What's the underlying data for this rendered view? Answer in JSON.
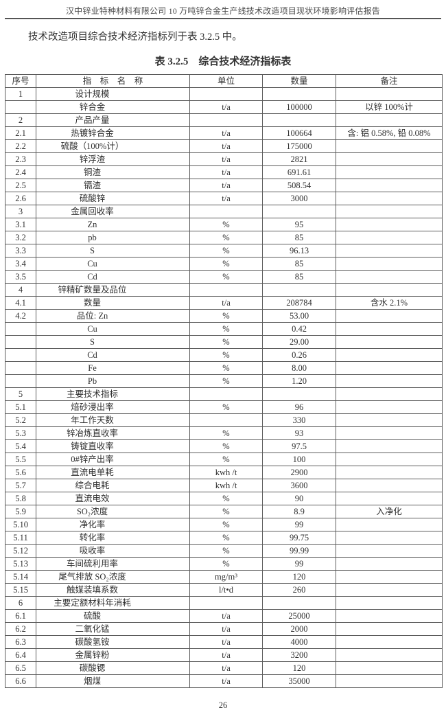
{
  "page": {
    "header": "汉中锌业特种材料有限公司 10 万吨锌合金生产线技术改造项目现状环境影响评估报告",
    "intro": "技术改造项目综合技术经济指标列于表 3.2.5 中。",
    "table_title": "表 3.2.5    综合技术经济指标表",
    "page_number": "26"
  },
  "table": {
    "columns": [
      "序号",
      "指    标    名    称",
      "单位",
      "数量",
      "备注"
    ],
    "rows": [
      [
        "1",
        "设计规模",
        "",
        "",
        ""
      ],
      [
        "",
        "锌合金",
        "t/a",
        "100000",
        "以锌 100%计"
      ],
      [
        "2",
        "产品产量",
        "",
        "",
        ""
      ],
      [
        "2.1",
        "热镀锌合金",
        "t/a",
        "100664",
        "含: 铝 0.58%, 铅 0.08%"
      ],
      [
        "2.2",
        "硫酸（100%计）",
        "t/a",
        "175000",
        ""
      ],
      [
        "2.3",
        "锌浮渣",
        "t/a",
        "2821",
        ""
      ],
      [
        "2.4",
        "铜渣",
        "t/a",
        "691.61",
        ""
      ],
      [
        "2.5",
        "镉渣",
        "t/a",
        "508.54",
        ""
      ],
      [
        "2.6",
        "硫酸锌",
        "t/a",
        "3000",
        ""
      ],
      [
        "3",
        "金属回收率",
        "",
        "",
        ""
      ],
      [
        "3.1",
        "Zn",
        "%",
        "95",
        ""
      ],
      [
        "3.2",
        "pb",
        "%",
        "85",
        ""
      ],
      [
        "3.3",
        "S",
        "%",
        "96.13",
        ""
      ],
      [
        "3.4",
        "Cu",
        "%",
        "85",
        ""
      ],
      [
        "3.5",
        "Cd",
        "%",
        "85",
        ""
      ],
      [
        "4",
        "锌精矿数量及品位",
        "",
        "",
        ""
      ],
      [
        "4.1",
        "数量",
        "t/a",
        "208784",
        "含水 2.1%"
      ],
      [
        "4.2",
        "品位: Zn",
        "%",
        "53.00",
        ""
      ],
      [
        "",
        "Cu",
        "%",
        "0.42",
        ""
      ],
      [
        "",
        "S",
        "%",
        "29.00",
        ""
      ],
      [
        "",
        "Cd",
        "%",
        "0.26",
        ""
      ],
      [
        "",
        "Fe",
        "%",
        "8.00",
        ""
      ],
      [
        "",
        "Pb",
        "%",
        "1.20",
        ""
      ],
      [
        "5",
        "主要技术指标",
        "",
        "",
        ""
      ],
      [
        "5.1",
        "焙砂浸出率",
        "%",
        "96",
        ""
      ],
      [
        "5.2",
        "年工作天数",
        "",
        "330",
        ""
      ],
      [
        "5.3",
        "锌冶炼直收率",
        "%",
        "93",
        ""
      ],
      [
        "5.4",
        "铸锭直收率",
        "%",
        "97.5",
        ""
      ],
      [
        "5.5",
        "0#锌产出率",
        "%",
        "100",
        ""
      ],
      [
        "5.6",
        "直流电单耗",
        "kwh /t",
        "2900",
        ""
      ],
      [
        "5.7",
        "综合电耗",
        "kwh /t",
        "3600",
        ""
      ],
      [
        "5.8",
        "直流电效",
        "%",
        "90",
        ""
      ],
      [
        "5.9",
        "SO₂浓度",
        "%",
        "8.9",
        "入净化"
      ],
      [
        "5.10",
        "净化率",
        "%",
        "99",
        ""
      ],
      [
        "5.11",
        "转化率",
        "%",
        "99.75",
        ""
      ],
      [
        "5.12",
        "吸收率",
        "%",
        "99.99",
        ""
      ],
      [
        "5.13",
        "车间硫利用率",
        "%",
        "99",
        ""
      ],
      [
        "5.14",
        "尾气排放 SO₂浓度",
        "mg/m³",
        "120",
        ""
      ],
      [
        "5.15",
        "触媒装填系数",
        "l/t•d",
        "260",
        ""
      ],
      [
        "6",
        "主要定额材料年消耗",
        "",
        "",
        ""
      ],
      [
        "6.1",
        "硫酸",
        "t/a",
        "25000",
        ""
      ],
      [
        "6.2",
        "二氧化锰",
        "t/a",
        "2000",
        ""
      ],
      [
        "6.3",
        "碳酸氢铵",
        "t/a",
        "4000",
        ""
      ],
      [
        "6.4",
        "金属锌粉",
        "t/a",
        "3200",
        ""
      ],
      [
        "6.5",
        "碳酸锶",
        "t/a",
        "120",
        ""
      ],
      [
        "6.6",
        "烟煤",
        "t/a",
        "35000",
        ""
      ]
    ]
  }
}
